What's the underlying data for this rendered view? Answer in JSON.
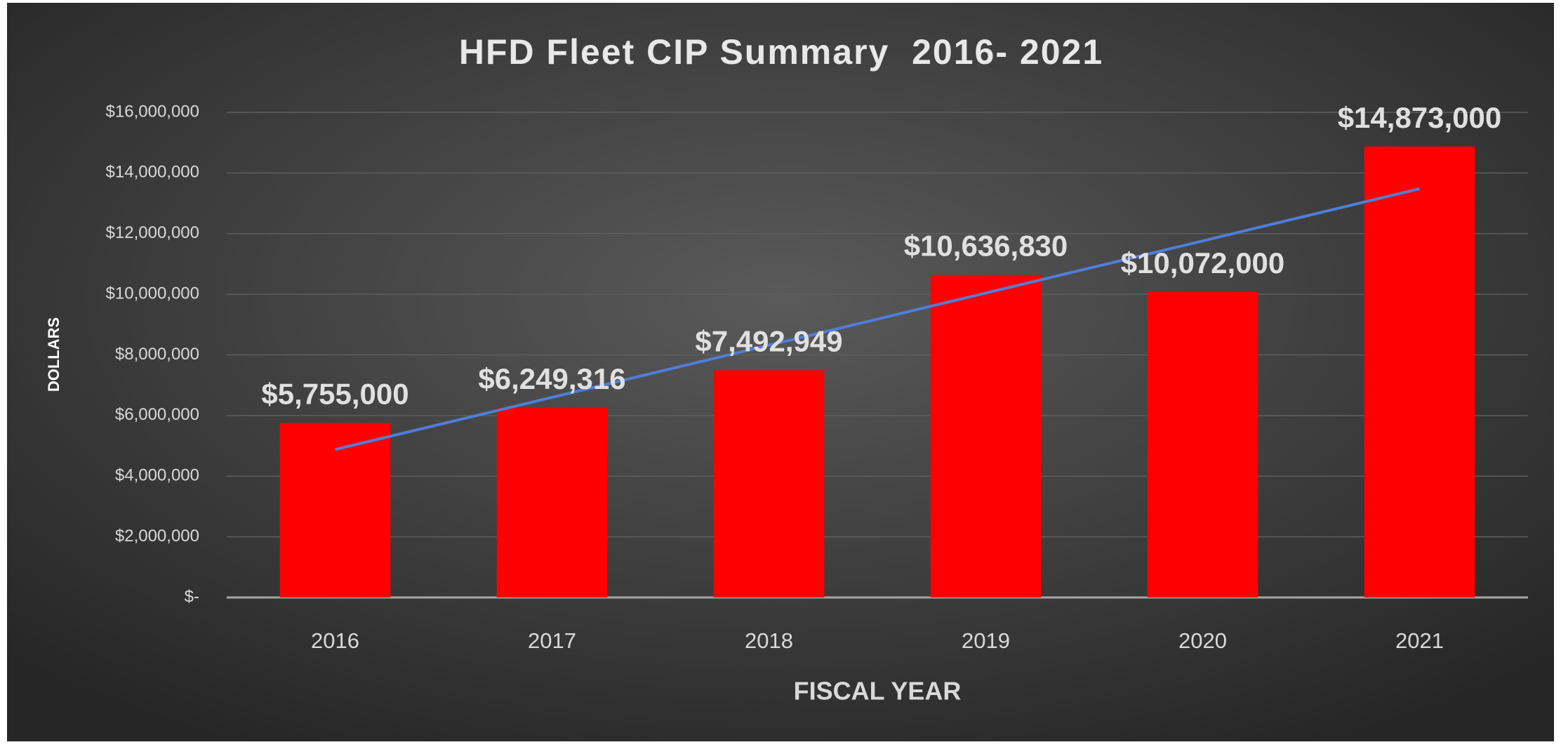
{
  "chart_data": {
    "type": "bar",
    "title": "HFD Fleet CIP Summary  2016- 2021",
    "x_label": "FISCAL YEAR",
    "y_label": "DOLLARS",
    "categories": [
      "2016",
      "2017",
      "2018",
      "2019",
      "2020",
      "2021"
    ],
    "values": [
      5755000,
      6249316,
      7492949,
      10636830,
      10072000,
      14873000
    ],
    "value_labels": [
      "$5,755,000",
      "$6,249,316",
      "$7,492,949",
      "$10,636,830",
      "$10,072,000",
      "$14,873,000"
    ],
    "color": "#ff0000",
    "ylim": [
      0,
      16000000
    ],
    "yticks": [
      {
        "value": 0,
        "label": "$-"
      },
      {
        "value": 2000000,
        "label": "$2,000,000"
      },
      {
        "value": 4000000,
        "label": "$4,000,000"
      },
      {
        "value": 6000000,
        "label": "$6,000,000"
      },
      {
        "value": 8000000,
        "label": "$8,000,000"
      },
      {
        "value": 10000000,
        "label": "$10,000,000"
      },
      {
        "value": 12000000,
        "label": "$12,000,000"
      },
      {
        "value": 14000000,
        "label": "$14,000,000"
      },
      {
        "value": 16000000,
        "label": "$16,000,000"
      }
    ],
    "grid": true,
    "trendline": {
      "type": "linear",
      "color": "#4f7ed8"
    }
  }
}
